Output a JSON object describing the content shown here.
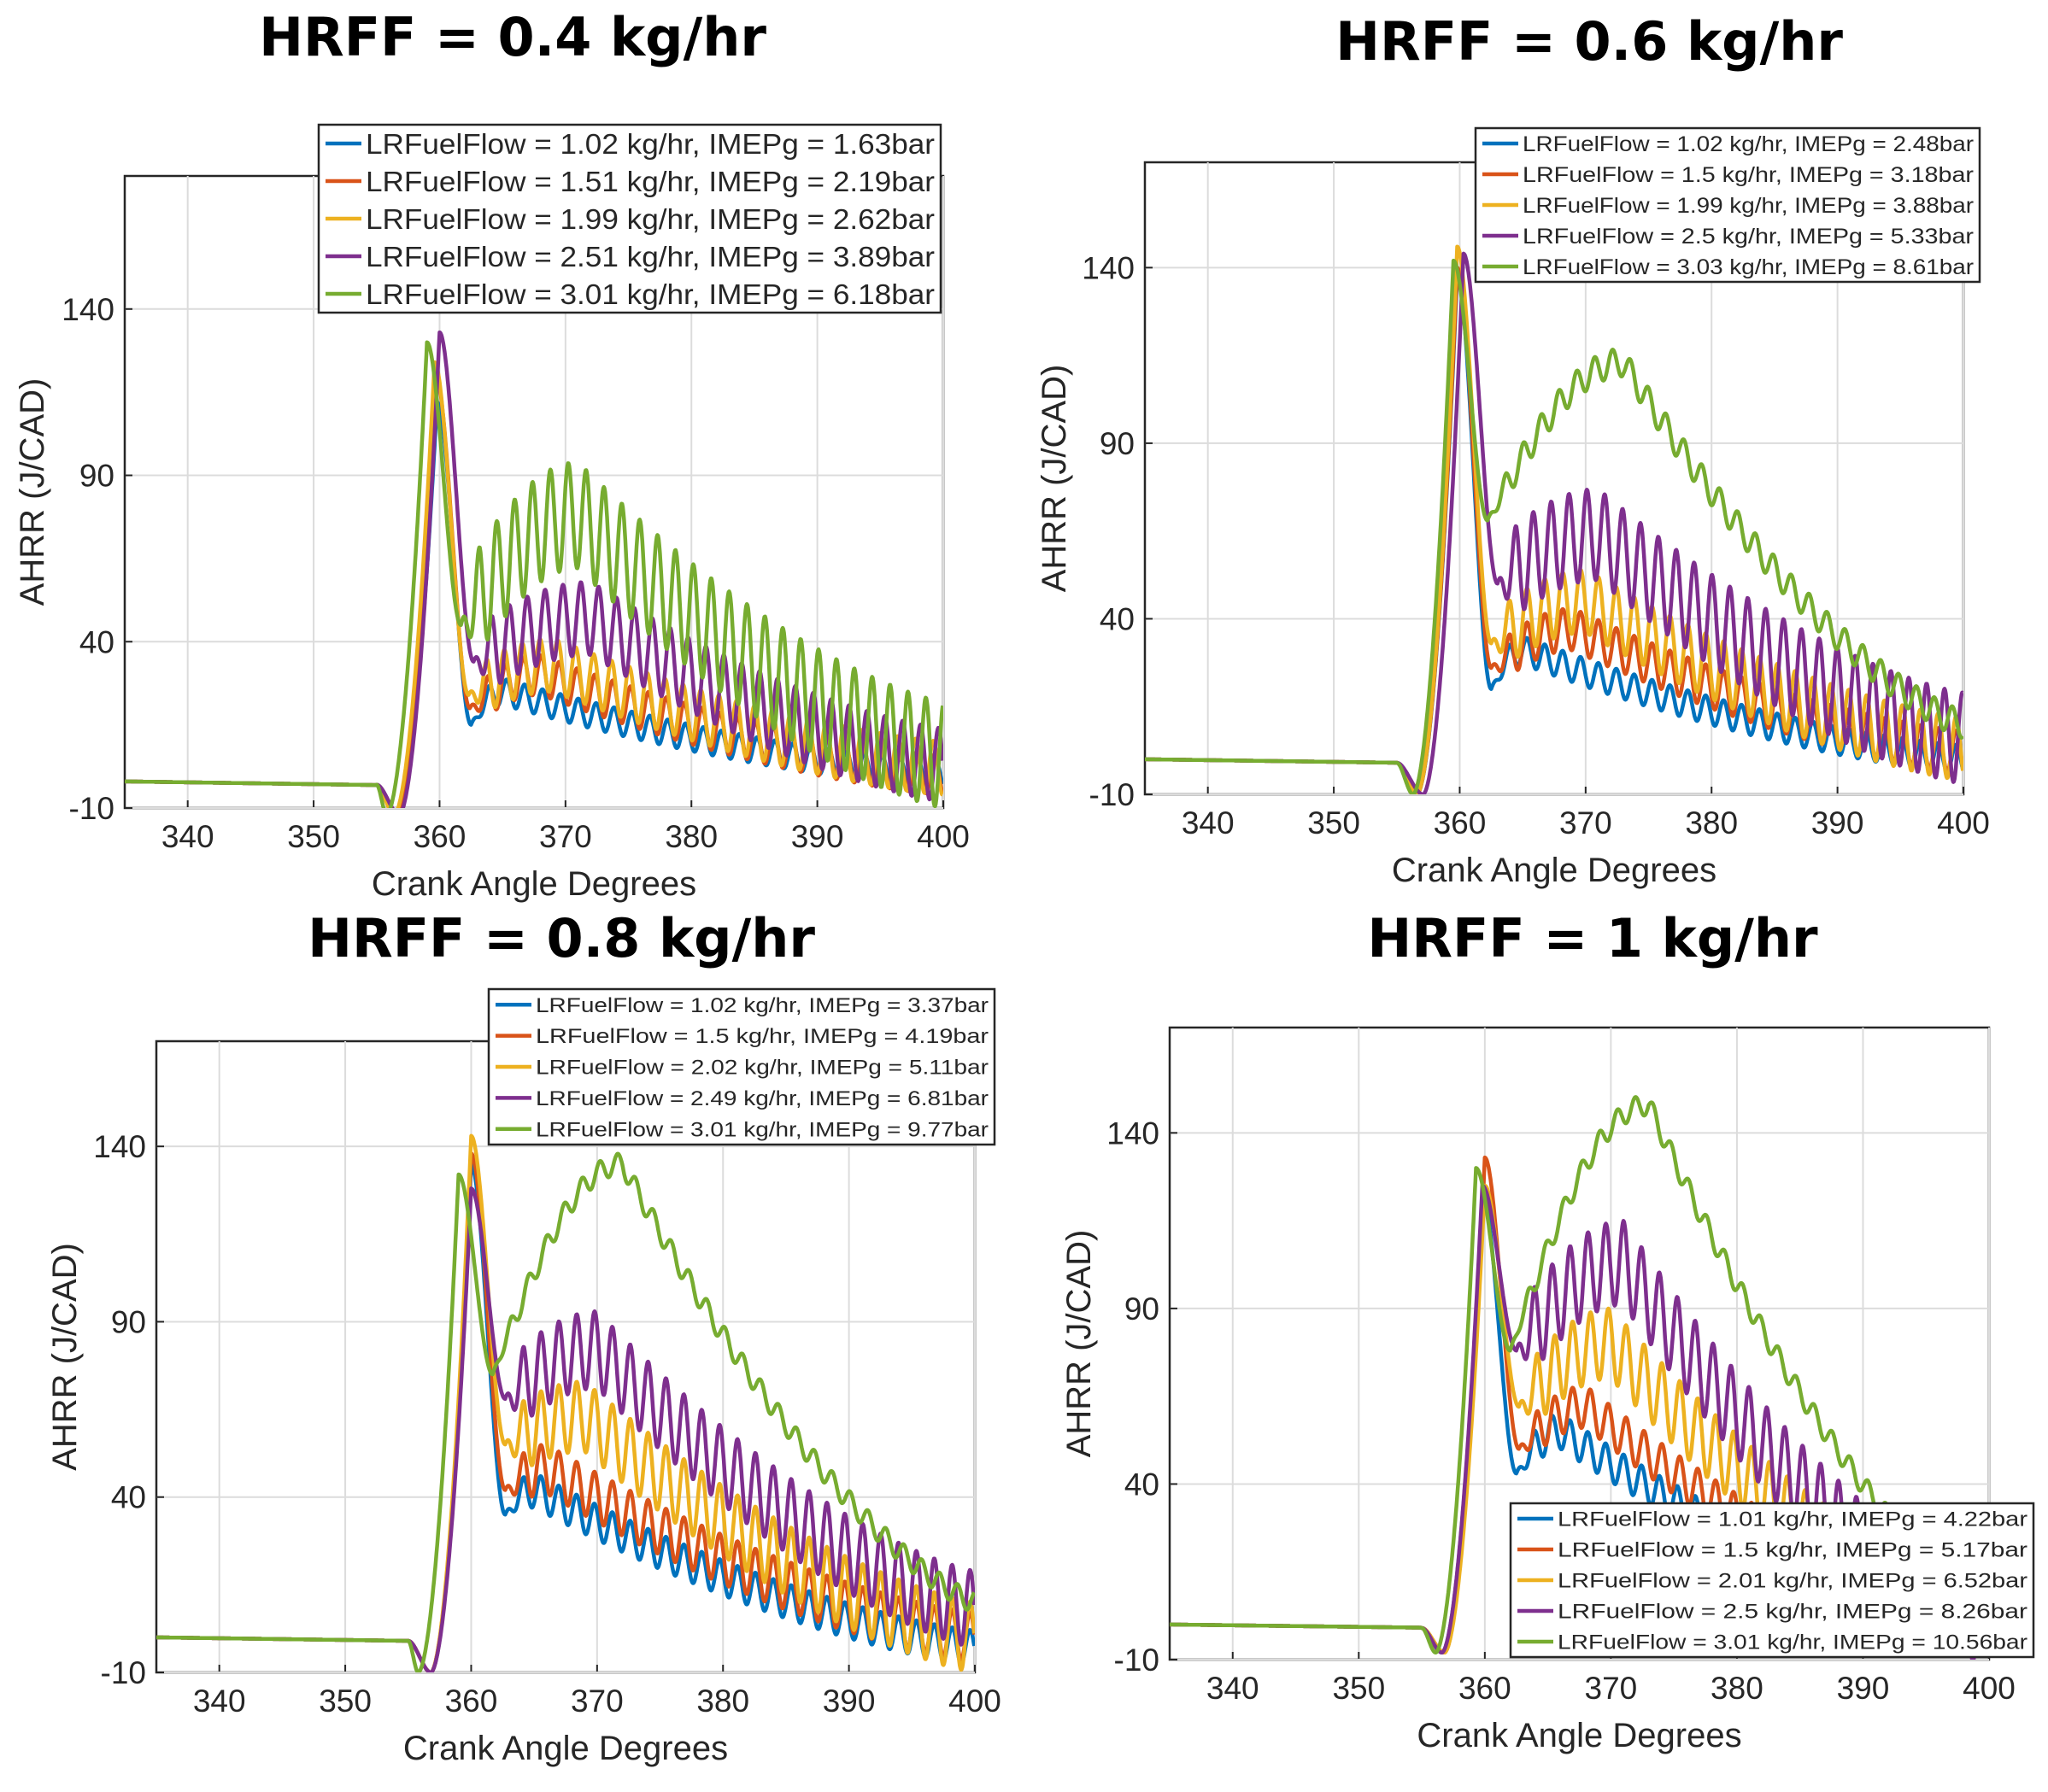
{
  "colors": {
    "blue": "#0072BD",
    "red": "#D95319",
    "yellow": "#EDB120",
    "purple": "#7E2F8E",
    "green": "#77AC30"
  },
  "chart_data": [
    {
      "type": "line",
      "title": "HRFF = 0.4 kg/hr",
      "xlabel": "Crank Angle Degrees",
      "ylabel": "AHRR (J/CAD)",
      "xlim": [
        335,
        400
      ],
      "ylim": [
        -10,
        180
      ],
      "xticks": [
        "340",
        "350",
        "360",
        "370",
        "380",
        "390",
        "400"
      ],
      "yticks": [
        "-10",
        "40",
        "90",
        "140"
      ],
      "grid": true,
      "legend_position": "top-right",
      "series": [
        {
          "name": "LRFuelFlow = 1.02 kg/hr, IMEPg = 1.63bar",
          "color": "#0072BD",
          "pre": -2,
          "min": -12,
          "peak": 112,
          "peak_x": 359.8,
          "post": 15,
          "env_peak": 25,
          "env_x": 365,
          "end": 0,
          "amp": 4,
          "x": [
            335,
            356.5,
            359.8,
            362.5,
            365,
            380,
            400
          ],
          "y": [
            -2,
            -12,
            112,
            15,
            25,
            12,
            0
          ]
        },
        {
          "name": "LRFuelFlow = 1.51 kg/hr, IMEPg = 2.19bar",
          "color": "#D95319",
          "pre": -2,
          "min": -12,
          "peak": 120,
          "peak_x": 359.7,
          "post": 20,
          "env_peak": 30,
          "env_x": 368,
          "end": 0,
          "amp": 6,
          "x": [
            335,
            356.5,
            359.7,
            362.5,
            368,
            380,
            400
          ],
          "y": [
            -2,
            -12,
            120,
            20,
            30,
            14,
            0
          ]
        },
        {
          "name": "LRFuelFlow = 1.99 kg/hr, IMEPg = 2.62bar",
          "color": "#EDB120",
          "pre": -2,
          "min": -12,
          "peak": 124,
          "peak_x": 359.6,
          "post": 24,
          "env_peak": 33,
          "env_x": 369,
          "end": 2,
          "amp": 8,
          "x": [
            335,
            356.5,
            359.6,
            362.5,
            369,
            380,
            400
          ],
          "y": [
            -2,
            -12,
            124,
            24,
            33,
            17,
            2
          ]
        },
        {
          "name": "LRFuelFlow = 2.51 kg/hr, IMEPg = 3.89bar",
          "color": "#7E2F8E",
          "pre": -2,
          "min": -12,
          "peak": 133,
          "peak_x": 360.0,
          "post": 34,
          "env_peak": 47,
          "env_x": 372,
          "end": 3,
          "amp": 11,
          "x": [
            335,
            356.5,
            360,
            362.5,
            372,
            385,
            400
          ],
          "y": [
            -2,
            -12,
            133,
            34,
            47,
            22,
            3
          ]
        },
        {
          "name": "LRFuelFlow = 3.01 kg/hr, IMEPg = 6.18bar",
          "color": "#77AC30",
          "pre": -2,
          "min": -12,
          "peak": 130,
          "peak_x": 359.0,
          "post": 45,
          "env_peak": 78,
          "env_x": 371,
          "end": 6,
          "amp": 16,
          "x": [
            335,
            356.5,
            359,
            362.5,
            371,
            385,
            400
          ],
          "y": [
            -2,
            -12,
            130,
            45,
            78,
            35,
            6
          ]
        }
      ]
    },
    {
      "type": "line",
      "title": "HRFF = 0.6 kg/hr",
      "xlabel": "Crank Angle Degrees",
      "ylabel": "AHRR (J/CAD)",
      "xlim": [
        335,
        400
      ],
      "ylim": [
        -10,
        170
      ],
      "xticks": [
        "340",
        "350",
        "360",
        "370",
        "380",
        "390",
        "400"
      ],
      "yticks": [
        "-10",
        "40",
        "90",
        "140"
      ],
      "grid": true,
      "legend_position": "top-right",
      "series": [
        {
          "name": "LRFuelFlow = 1.02 kg/hr, IMEPg = 2.48bar",
          "color": "#0072BD",
          "pre": 0,
          "min": -10,
          "peak": 138,
          "peak_x": 359.8,
          "post": 20,
          "env_peak": 31,
          "env_x": 365,
          "end": 0,
          "amp": 4,
          "x": [
            335,
            356.5,
            359.8,
            362.5,
            365,
            380,
            400
          ],
          "y": [
            0,
            -10,
            138,
            20,
            31,
            14,
            0
          ]
        },
        {
          "name": "LRFuelFlow = 1.5 kg/hr, IMEPg = 3.18bar",
          "color": "#D95319",
          "pre": 0,
          "min": -10,
          "peak": 140,
          "peak_x": 359.8,
          "post": 26,
          "env_peak": 37,
          "env_x": 369,
          "end": 2,
          "amp": 6,
          "x": [
            335,
            356.5,
            359.8,
            362.5,
            369,
            380,
            400
          ],
          "y": [
            0,
            -10,
            140,
            26,
            37,
            20,
            2
          ]
        },
        {
          "name": "LRFuelFlow = 1.99 kg/hr, IMEPg = 3.88bar",
          "color": "#EDB120",
          "pre": 0,
          "min": -10,
          "peak": 146,
          "peak_x": 359.8,
          "post": 33,
          "env_peak": 45,
          "env_x": 370,
          "end": 3,
          "amp": 9,
          "x": [
            335,
            356.5,
            359.8,
            362.5,
            370,
            385,
            400
          ],
          "y": [
            0,
            -10,
            146,
            33,
            45,
            20,
            3
          ]
        },
        {
          "name": "LRFuelFlow = 2.5 kg/hr, IMEPg = 5.33bar",
          "color": "#7E2F8E",
          "pre": 0,
          "min": -10,
          "peak": 144,
          "peak_x": 360.3,
          "post": 50,
          "env_peak": 64,
          "env_x": 371,
          "end": 6,
          "amp": 13,
          "x": [
            335,
            356.5,
            360.3,
            362.5,
            371,
            385,
            400
          ],
          "y": [
            0,
            -10,
            144,
            50,
            64,
            30,
            6
          ]
        },
        {
          "name": "LRFuelFlow = 3.03 kg/hr, IMEPg = 8.61bar",
          "color": "#77AC30",
          "pre": 0,
          "min": -10,
          "peak": 142,
          "peak_x": 359.5,
          "post": 68,
          "env_peak": 113,
          "env_x": 373,
          "end": 10,
          "amp": 4,
          "x": [
            335,
            356.5,
            359.5,
            362.5,
            373,
            385,
            400
          ],
          "y": [
            0,
            -10,
            142,
            68,
            113,
            55,
            10
          ]
        }
      ]
    },
    {
      "type": "line",
      "title": "HRFF = 0.8 kg/hr",
      "xlabel": "Crank Angle Degrees",
      "ylabel": "AHRR (J/CAD)",
      "xlim": [
        335,
        400
      ],
      "ylim": [
        -10,
        170
      ],
      "xticks": [
        "340",
        "350",
        "360",
        "370",
        "380",
        "390",
        "400"
      ],
      "yticks": [
        "-10",
        "40",
        "90",
        "140"
      ],
      "grid": true,
      "legend_position": "top-right",
      "series": [
        {
          "name": "LRFuelFlow = 1.02 kg/hr, IMEPg = 3.37bar",
          "color": "#0072BD",
          "pre": 0,
          "min": -10,
          "peak": 135,
          "peak_x": 360.0,
          "post": 35,
          "env_peak": 42,
          "env_x": 365,
          "end": -3,
          "amp": 5,
          "x": [
            335,
            356.5,
            360,
            362.5,
            365,
            380,
            400
          ],
          "y": [
            0,
            -10,
            135,
            35,
            42,
            15,
            -3
          ]
        },
        {
          "name": "LRFuelFlow = 1.5 kg/hr, IMEPg = 4.19bar",
          "color": "#D95319",
          "pre": 0,
          "min": -10,
          "peak": 138,
          "peak_x": 360.0,
          "post": 42,
          "env_peak": 48,
          "env_x": 366,
          "end": 0,
          "amp": 7,
          "x": [
            335,
            356.5,
            360,
            362.5,
            366,
            385,
            400
          ],
          "y": [
            0,
            -10,
            138,
            42,
            48,
            16,
            0
          ]
        },
        {
          "name": "LRFuelFlow = 2.02 kg/hr, IMEPg = 5.11bar",
          "color": "#EDB120",
          "pre": 0,
          "min": -10,
          "peak": 143,
          "peak_x": 360.0,
          "post": 55,
          "env_peak": 63,
          "env_x": 369,
          "end": 0,
          "amp": 10,
          "x": [
            335,
            356.5,
            360,
            362.5,
            369,
            385,
            400
          ],
          "y": [
            0,
            -10,
            143,
            55,
            63,
            22,
            0
          ]
        },
        {
          "name": "LRFuelFlow = 2.49 kg/hr, IMEPg = 6.81bar",
          "color": "#7E2F8E",
          "pre": 0,
          "min": -10,
          "peak": 128,
          "peak_x": 360.0,
          "post": 68,
          "env_peak": 82,
          "env_x": 370,
          "end": 8,
          "amp": 11,
          "x": [
            335,
            356.5,
            360,
            362.5,
            370,
            385,
            400
          ],
          "y": [
            0,
            -10,
            128,
            68,
            82,
            30,
            8
          ]
        },
        {
          "name": "LRFuelFlow = 3.01 kg/hr, IMEPg = 9.77bar",
          "color": "#77AC30",
          "pre": 0,
          "min": -10,
          "peak": 132,
          "peak_x": 359.0,
          "post": 75,
          "env_peak": 135,
          "env_x": 372,
          "end": 10,
          "amp": 3,
          "x": [
            335,
            356.5,
            359,
            362.5,
            372,
            385,
            400
          ],
          "y": [
            0,
            -10,
            132,
            75,
            135,
            45,
            10
          ]
        }
      ]
    },
    {
      "type": "line",
      "title": "HRFF = 1 kg/hr",
      "xlabel": "Crank Angle Degrees",
      "ylabel": "AHRR (J/CAD)",
      "xlim": [
        335,
        400
      ],
      "ylim": [
        -10,
        170
      ],
      "xticks": [
        "340",
        "350",
        "360",
        "370",
        "380",
        "390",
        "400"
      ],
      "yticks": [
        "-10",
        "40",
        "90",
        "140"
      ],
      "grid": true,
      "legend_position": "bottom-right",
      "series": [
        {
          "name": "LRFuelFlow = 1.01 kg/hr, IMEPg = 4.22bar",
          "color": "#0072BD",
          "pre": 0,
          "min": -8,
          "peak": 123,
          "peak_x": 359.8,
          "post": 43,
          "env_peak": 55,
          "env_x": 366,
          "end": 0,
          "amp": 5,
          "x": [
            335,
            357,
            359.8,
            362.5,
            366,
            385,
            400
          ],
          "y": [
            0,
            -8,
            123,
            43,
            55,
            10,
            0
          ]
        },
        {
          "name": "LRFuelFlow = 1.5 kg/hr, IMEPg = 5.17bar",
          "color": "#D95319",
          "pre": 0,
          "min": -8,
          "peak": 133,
          "peak_x": 360.0,
          "post": 50,
          "env_peak": 62,
          "env_x": 368,
          "end": 0,
          "amp": 6,
          "x": [
            335,
            357,
            360,
            362.5,
            368,
            385,
            400
          ],
          "y": [
            0,
            -8,
            133,
            50,
            62,
            15,
            0
          ]
        },
        {
          "name": "LRFuelFlow = 2.01 kg/hr, IMEPg = 6.52bar",
          "color": "#EDB120",
          "pre": 0,
          "min": -8,
          "peak": 125,
          "peak_x": 360.0,
          "post": 62,
          "env_peak": 80,
          "env_x": 370,
          "end": 0,
          "amp": 10,
          "x": [
            335,
            357,
            360,
            362.5,
            370,
            385,
            400
          ],
          "y": [
            0,
            -8,
            125,
            62,
            80,
            20,
            0
          ]
        },
        {
          "name": "LRFuelFlow = 2.5 kg/hr, IMEPg = 8.26bar",
          "color": "#7E2F8E",
          "pre": 0,
          "min": -8,
          "peak": 125,
          "peak_x": 359.8,
          "post": 78,
          "env_peak": 103,
          "env_x": 371,
          "end": 0,
          "amp": 12,
          "x": [
            335,
            357,
            359.8,
            362.5,
            371,
            388,
            400
          ],
          "y": [
            0,
            -8,
            125,
            78,
            103,
            30,
            0
          ]
        },
        {
          "name": "LRFuelFlow = 3.01 kg/hr, IMEPg = 10.56bar",
          "color": "#77AC30",
          "pre": 0,
          "min": -8,
          "peak": 130,
          "peak_x": 359.3,
          "post": 78,
          "env_peak": 148,
          "env_x": 373,
          "end": 5,
          "amp": 3,
          "x": [
            335,
            357,
            359.3,
            362.5,
            373,
            388,
            400
          ],
          "y": [
            0,
            -8,
            130,
            78,
            148,
            40,
            5
          ]
        }
      ]
    }
  ]
}
